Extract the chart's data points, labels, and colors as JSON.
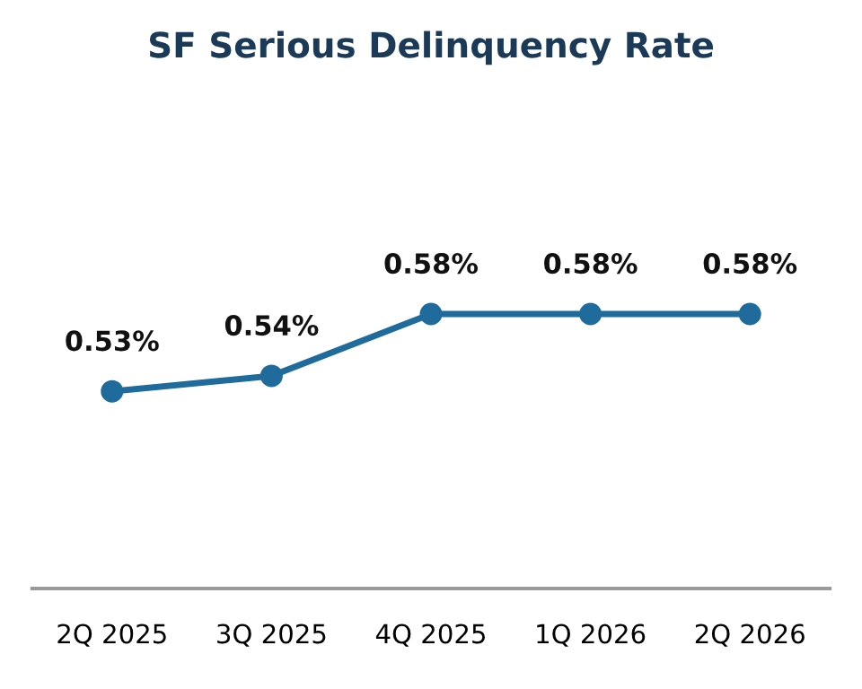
{
  "chart_data": {
    "type": "line",
    "title": "SF Serious Delinquency Rate",
    "categories": [
      "2Q 2025",
      "3Q 2025",
      "4Q 2025",
      "1Q 2026",
      "2Q 2026"
    ],
    "series": [
      {
        "color": "#1f6b9c",
        "values": [
          0.53,
          0.54,
          0.58,
          0.58,
          0.58
        ],
        "value_labels": [
          "0.53%",
          "0.54%",
          "0.58%",
          "0.58%",
          "0.58%"
        ]
      }
    ],
    "marker": "circle",
    "line_style": "solid",
    "grid": false,
    "legend": false,
    "tick_labels": "x"
  }
}
